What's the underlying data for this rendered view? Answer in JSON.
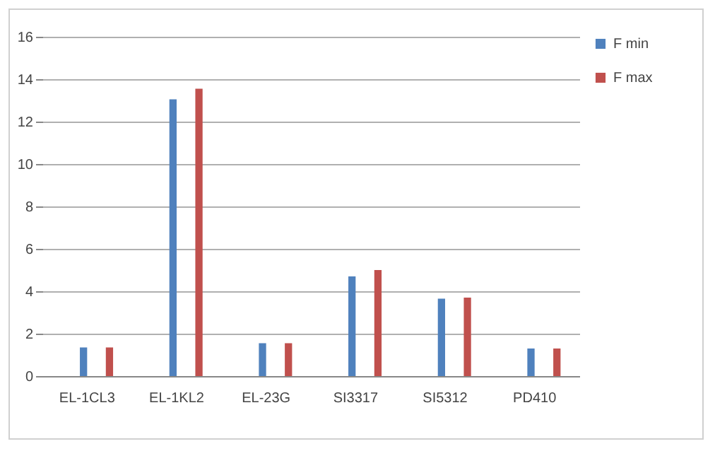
{
  "chart_data": {
    "type": "bar",
    "categories": [
      "EL-1CL3",
      "EL-1KL2",
      "EL-23G",
      "SI3317",
      "SI5312",
      "PD410"
    ],
    "series": [
      {
        "name": "F min",
        "color": "#4f81bd",
        "values": [
          1.35,
          13.05,
          1.55,
          4.7,
          3.65,
          1.3
        ]
      },
      {
        "name": "F max",
        "color": "#c0504d",
        "values": [
          1.35,
          13.55,
          1.55,
          5.0,
          3.7,
          1.3
        ]
      }
    ],
    "ylim": [
      0,
      16
    ],
    "yticks": [
      0,
      2,
      4,
      6,
      8,
      10,
      12,
      14,
      16
    ],
    "grid": "y",
    "legend": "right"
  }
}
